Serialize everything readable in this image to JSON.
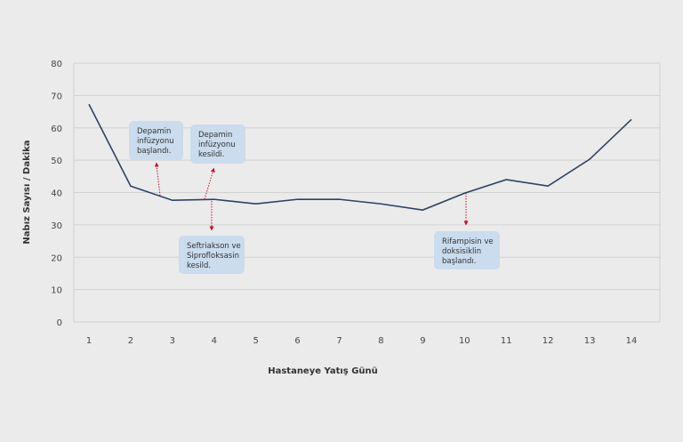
{
  "chart_data": {
    "type": "line",
    "title": "",
    "xlabel": "Hastaneye Yatış Günü",
    "ylabel": "Nabız Sayısı / Dakika",
    "x": [
      1,
      2,
      3,
      4,
      5,
      6,
      7,
      8,
      9,
      10,
      11,
      12,
      13,
      14
    ],
    "series": [
      {
        "name": "Nabız",
        "values": [
          67.3,
          42,
          37.6,
          37.9,
          36.5,
          37.9,
          37.9,
          36.5,
          34.6,
          39.8,
          44,
          42,
          50.3,
          62.6
        ]
      }
    ],
    "ylim": [
      0,
      80
    ],
    "yticks": [
      0,
      10,
      20,
      30,
      40,
      50,
      60,
      70,
      80
    ],
    "grid": true,
    "colors": {
      "line": "#2b4265",
      "grid": "#d2d2d2",
      "annotation_box": "#cadcee",
      "arrow": "#c8102e"
    },
    "annotations": [
      {
        "lines": [
          "Depamin",
          "infüzyonu",
          "başlandı."
        ],
        "at_day": 2.6,
        "direction": "up"
      },
      {
        "lines": [
          "Depamin",
          "infüzyonu",
          "kesildi."
        ],
        "at_day": 3.8,
        "direction": "up"
      },
      {
        "lines": [
          "Seftriakson ve",
          "Siprofloksasin",
          "kesild."
        ],
        "at_day": 4,
        "direction": "down"
      },
      {
        "lines": [
          "Rifampisin ve",
          "doksisiklin",
          "başlandı."
        ],
        "at_day": 10,
        "direction": "down"
      }
    ]
  }
}
